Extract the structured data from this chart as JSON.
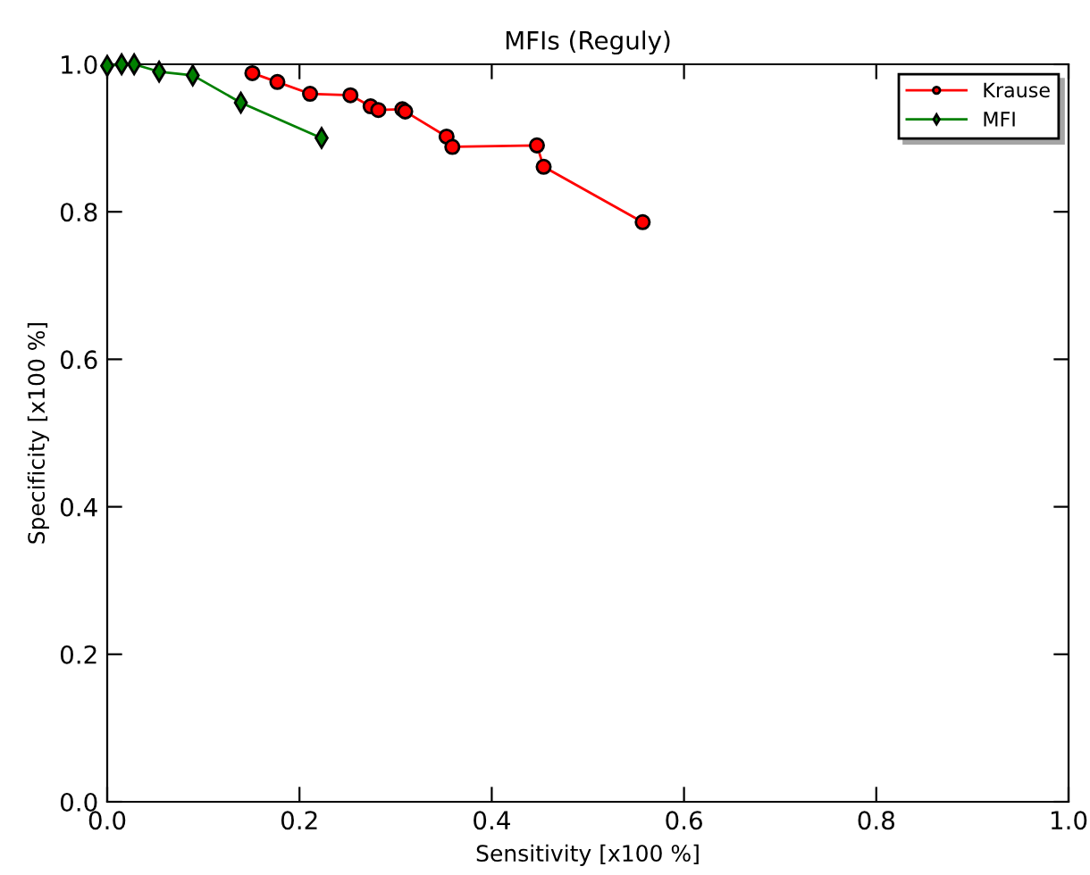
{
  "chart_data": {
    "type": "line",
    "title": "MFIs (Reguly)",
    "xlabel": "Sensitivity [x100 %]",
    "ylabel": "Specificity [x100 %]",
    "xlim": [
      0,
      1
    ],
    "ylim": [
      0,
      1
    ],
    "xticks": [
      {
        "value": 0,
        "label": "0.0"
      },
      {
        "value": 0.2,
        "label": "0.2"
      },
      {
        "value": 0.4,
        "label": "0.4"
      },
      {
        "value": 0.6,
        "label": "0.6"
      },
      {
        "value": 0.8,
        "label": "0.8"
      },
      {
        "value": 1,
        "label": "1.0"
      }
    ],
    "yticks": [
      {
        "value": 0,
        "label": "0.0"
      },
      {
        "value": 0.2,
        "label": "0.2"
      },
      {
        "value": 0.4,
        "label": "0.4"
      },
      {
        "value": 0.6,
        "label": "0.6"
      },
      {
        "value": 0.8,
        "label": "0.8"
      },
      {
        "value": 1,
        "label": "1.0"
      }
    ],
    "legend": "top right",
    "grid": false,
    "series": [
      {
        "name": "Krause",
        "color": "#ff0000",
        "marker": "circle",
        "x": [
          0.151,
          0.177,
          0.211,
          0.253,
          0.274,
          0.282,
          0.307,
          0.31,
          0.353,
          0.359,
          0.447,
          0.454,
          0.557
        ],
        "values": [
          0.988,
          0.976,
          0.96,
          0.958,
          0.943,
          0.938,
          0.939,
          0.936,
          0.902,
          0.888,
          0.89,
          0.861,
          0.786
        ]
      },
      {
        "name": "MFI",
        "color": "#008000",
        "marker": "diamond",
        "x": [
          0.0,
          0.015,
          0.028,
          0.054,
          0.089,
          0.139,
          0.223
        ],
        "values": [
          0.998,
          1.0,
          1.0,
          0.99,
          0.985,
          0.948,
          0.9
        ]
      }
    ]
  }
}
